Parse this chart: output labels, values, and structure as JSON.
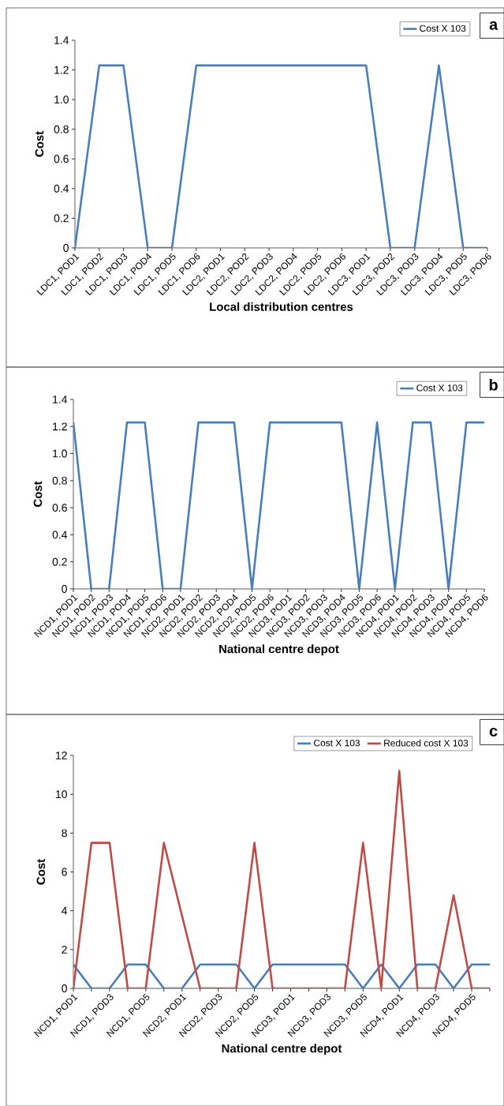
{
  "chart_data": [
    {
      "type": "line",
      "xlabel": "Local distribution centres",
      "ylabel": "Cost",
      "annotations": [
        "a"
      ],
      "legend": "top right",
      "categories": [
        "LDC1, POD1",
        "LDC1, POD2",
        "LDC1, POD3",
        "LDC1, POD4",
        "LDC1, POD5",
        "LDC1, POD6",
        "LDC2, POD1",
        "LDC2, POD2",
        "LDC2, POD3",
        "LDC2, POD4",
        "LDC2, POD5",
        "LDC2, POD6",
        "LDC3, POD1",
        "LDC3, POD2",
        "LDC3, POD3",
        "LDC3, POD4",
        "LDC3, POD5",
        "LDC3, POD6"
      ],
      "ylim": [
        0,
        1.4
      ],
      "yticks": [
        0,
        0.2,
        0.4,
        0.6,
        0.8,
        {
          "value": 1,
          "label": "1.0"
        },
        1.2,
        1.4
      ],
      "series": [
        {
          "name": "Cost X 103",
          "color": "#4a7ebb",
          "values": [
            0,
            1.23,
            1.23,
            0,
            0,
            1.23,
            1.23,
            1.23,
            1.23,
            1.23,
            1.23,
            1.23,
            1.23,
            0,
            0,
            1.23,
            0,
            0
          ]
        }
      ]
    },
    {
      "type": "line",
      "xlabel": "National centre depot",
      "ylabel": "Cost",
      "annotations": [
        "b"
      ],
      "legend": "top right",
      "categories": [
        "NCD1, POD1",
        "NCD1, POD2",
        "NCD1, POD3",
        "NCD1, POD4",
        "NCD1, POD5",
        "NCD1, POD6",
        "NCD2, POD1",
        "NCD2, POD2",
        "NCD2, POD3",
        "NCD2, POD4",
        "NCD2, POD5",
        "NCD2, POD6",
        "NCD3, POD1",
        "NCD3, POD2",
        "NCD3, POD3",
        "NCD3, POD4",
        "NCD3, POD5",
        "NCD3, POD6",
        "NCD4, POD1",
        "NCD4, POD2",
        "NCD4, POD3",
        "NCD4, POD4",
        "NCD4, POD5",
        "NCD4, POD6"
      ],
      "ylim": [
        0,
        1.4
      ],
      "yticks": [
        0,
        0.2,
        0.4,
        0.6,
        0.8,
        {
          "value": 1,
          "label": "1.0"
        },
        1.2,
        1.4
      ],
      "series": [
        {
          "name": "Cost X 103",
          "color": "#4a7ebb",
          "values": [
            1.23,
            0,
            0,
            1.23,
            1.23,
            0,
            0,
            1.23,
            1.23,
            1.23,
            0,
            1.23,
            1.23,
            1.23,
            1.23,
            1.23,
            0,
            1.23,
            0,
            1.23,
            1.23,
            0,
            1.23,
            1.23
          ]
        }
      ]
    },
    {
      "type": "line",
      "xlabel": "National centre depot",
      "ylabel": "Cost",
      "annotations": [
        "c"
      ],
      "legend": "top right",
      "categories": [
        "NCD1, POD1",
        null,
        "NCD1, POD3",
        null,
        "NCD1, POD5",
        null,
        "NCD2, POD1",
        null,
        "NCD2, POD3",
        null,
        "NCD2, POD5",
        null,
        "NCD3, POD1",
        null,
        "NCD3, POD3",
        null,
        "NCD3, POD5",
        null,
        "NCD4, POD1",
        null,
        "NCD4, POD3",
        null,
        "NCD4, POD5",
        null
      ],
      "ylim": [
        0,
        12
      ],
      "yticks": [
        0,
        2,
        4,
        6,
        8,
        10,
        12
      ],
      "series": [
        {
          "name": "Cost X 103",
          "color": "#4a7ebb",
          "values": [
            1.23,
            0,
            0,
            1.23,
            1.23,
            0,
            0,
            1.23,
            1.23,
            1.23,
            0,
            1.23,
            1.23,
            1.23,
            1.23,
            1.23,
            0,
            1.23,
            0,
            1.23,
            1.23,
            0,
            1.23,
            1.23
          ]
        },
        {
          "name": "Reduced cost X 103",
          "color": "#be4b48",
          "values": [
            0,
            7.5,
            7.5,
            0,
            0,
            7.5,
            3.75,
            0,
            0,
            0,
            7.5,
            0,
            0,
            0,
            0,
            0,
            7.5,
            0,
            11.2,
            0,
            0,
            4.8,
            0,
            0
          ]
        }
      ]
    }
  ]
}
